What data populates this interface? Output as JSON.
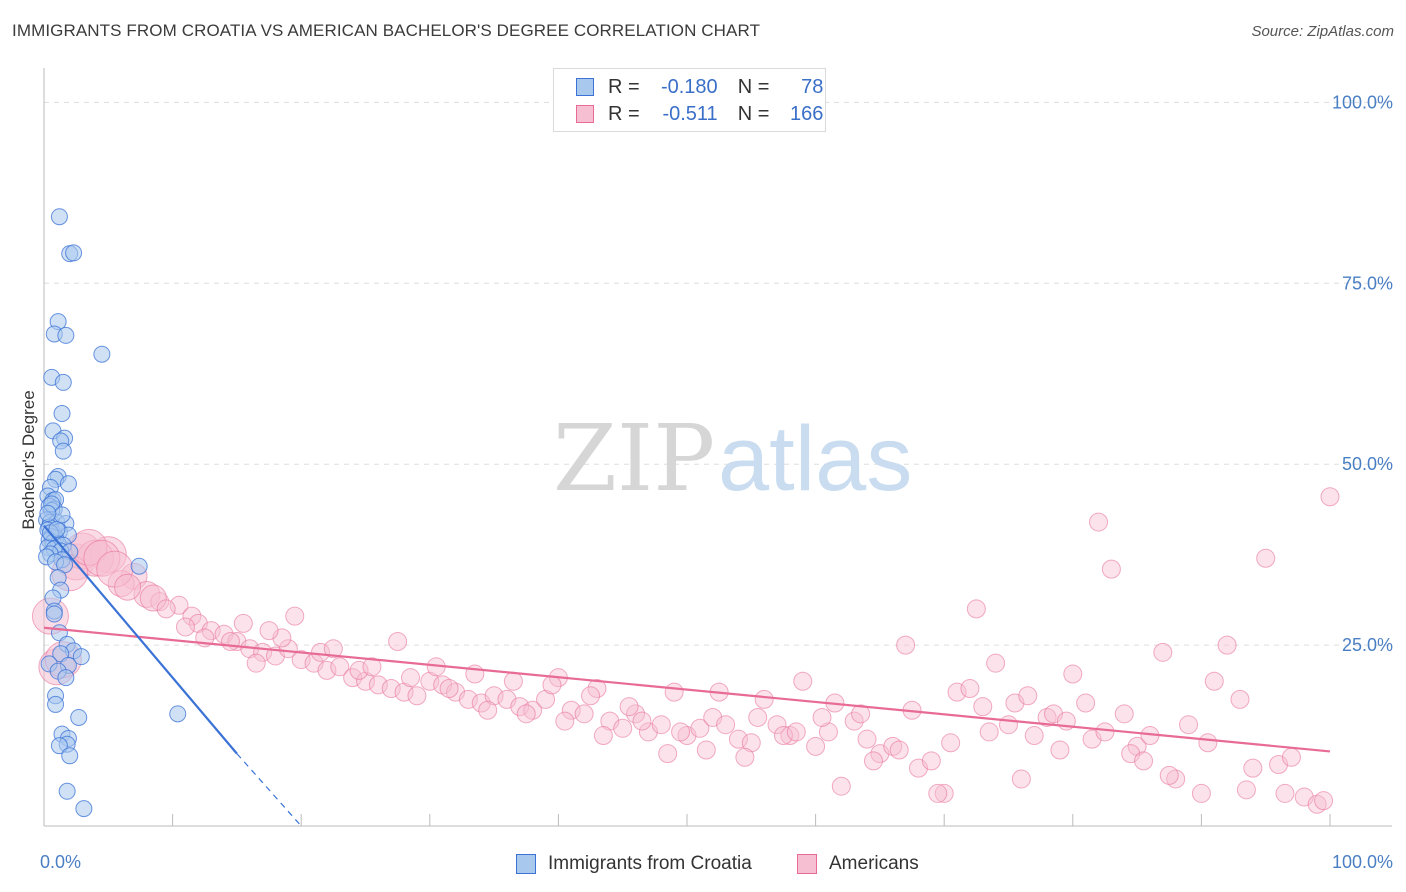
{
  "title": "IMMIGRANTS FROM CROATIA VS AMERICAN BACHELOR'S DEGREE CORRELATION CHART",
  "source": "Source: ZipAtlas.com",
  "watermark": {
    "zip": "ZIP",
    "atlas": "atlas"
  },
  "colors": {
    "blue": "#3a72d6",
    "blue_fill": "#a9c8ee",
    "pink": "#e86b96",
    "pink_fill": "#f6bfd2",
    "tick_text": "#4a7fc4",
    "grid": "#dddddd"
  },
  "legend": {
    "rows": [
      {
        "r_label": "R =",
        "r_value": "-0.180",
        "n_label": "N =",
        "n_value": "78"
      },
      {
        "r_label": "R =",
        "r_value": "-0.511",
        "n_label": "N =",
        "n_value": "166"
      }
    ]
  },
  "bottom_legend": [
    "Immigrants from Croatia",
    "Americans"
  ],
  "chart_data": {
    "type": "scatter",
    "title": "IMMIGRANTS FROM CROATIA VS AMERICAN BACHELOR'S DEGREE CORRELATION CHART",
    "xlabel": "",
    "ylabel": "Bachelor's Degree",
    "xlim": [
      0,
      100
    ],
    "ylim": [
      0,
      100
    ],
    "x_tick_labels": [
      "0.0%",
      "100.0%"
    ],
    "y_ticks": [
      {
        "value": 100,
        "label": "100.0%"
      },
      {
        "value": 75,
        "label": "75.0%"
      },
      {
        "value": 50,
        "label": "50.0%"
      },
      {
        "value": 25,
        "label": "25.0%"
      }
    ],
    "series": [
      {
        "name": "Immigrants from Croatia",
        "color": "#3a72d6",
        "r": -0.18,
        "n": 78,
        "trend": {
          "x0": 0,
          "y0": 41.5,
          "x1": 15.0,
          "y1": 10.0,
          "dash_to_x": 20.0
        },
        "points": [
          [
            1.2,
            84.2
          ],
          [
            2.0,
            79.1
          ],
          [
            2.3,
            79.2
          ],
          [
            1.1,
            69.7
          ],
          [
            0.8,
            68.0
          ],
          [
            1.7,
            67.8
          ],
          [
            4.5,
            65.2
          ],
          [
            0.6,
            62.0
          ],
          [
            1.5,
            61.3
          ],
          [
            1.4,
            57.0
          ],
          [
            0.7,
            54.6
          ],
          [
            1.6,
            53.6
          ],
          [
            1.3,
            53.2
          ],
          [
            1.5,
            51.8
          ],
          [
            1.1,
            48.3
          ],
          [
            0.9,
            47.9
          ],
          [
            1.9,
            47.3
          ],
          [
            0.5,
            46.8
          ],
          [
            0.3,
            45.6
          ],
          [
            0.7,
            45.0
          ],
          [
            0.9,
            45.1
          ],
          [
            0.4,
            44.2
          ],
          [
            0.8,
            43.8
          ],
          [
            0.6,
            43.6
          ],
          [
            0.2,
            42.3
          ],
          [
            0.5,
            42.0
          ],
          [
            1.0,
            42.0
          ],
          [
            1.7,
            41.8
          ],
          [
            0.4,
            41.3
          ],
          [
            0.3,
            40.9
          ],
          [
            1.2,
            40.7
          ],
          [
            1.9,
            40.2
          ],
          [
            0.6,
            40.0
          ],
          [
            0.9,
            39.8
          ],
          [
            0.4,
            39.5
          ],
          [
            0.7,
            39.2
          ],
          [
            1.1,
            39.0
          ],
          [
            1.5,
            38.8
          ],
          [
            0.3,
            38.5
          ],
          [
            0.8,
            38.3
          ],
          [
            1.3,
            38.0
          ],
          [
            2.0,
            37.9
          ],
          [
            0.5,
            37.6
          ],
          [
            0.2,
            37.2
          ],
          [
            1.4,
            36.8
          ],
          [
            0.9,
            36.5
          ],
          [
            1.6,
            36.1
          ],
          [
            7.4,
            35.9
          ],
          [
            1.1,
            34.3
          ],
          [
            1.3,
            32.6
          ],
          [
            0.7,
            31.5
          ],
          [
            0.8,
            29.7
          ],
          [
            0.8,
            29.3
          ],
          [
            1.2,
            26.7
          ],
          [
            1.8,
            25.1
          ],
          [
            2.3,
            24.2
          ],
          [
            1.3,
            23.8
          ],
          [
            2.9,
            23.4
          ],
          [
            0.4,
            22.4
          ],
          [
            1.9,
            22.2
          ],
          [
            1.1,
            21.4
          ],
          [
            1.7,
            20.5
          ],
          [
            0.9,
            18.0
          ],
          [
            0.9,
            16.8
          ],
          [
            2.7,
            15.0
          ],
          [
            10.4,
            15.5
          ],
          [
            1.4,
            12.7
          ],
          [
            1.9,
            12.1
          ],
          [
            1.8,
            11.3
          ],
          [
            1.2,
            11.1
          ],
          [
            2.0,
            9.7
          ],
          [
            1.8,
            4.8
          ],
          [
            3.1,
            2.4
          ],
          [
            0.5,
            40.5
          ],
          [
            1.0,
            41.0
          ],
          [
            0.6,
            44.5
          ],
          [
            1.4,
            43.0
          ],
          [
            0.3,
            43.2
          ]
        ]
      },
      {
        "name": "Americans",
        "color": "#e86b96",
        "r": -0.511,
        "n": 166,
        "trend": {
          "x0": 0,
          "y0": 27.4,
          "x1": 100,
          "y1": 10.3
        },
        "points": [
          [
            2.5,
            36.5
          ],
          [
            3.0,
            38.0
          ],
          [
            5.0,
            37.5
          ],
          [
            4.0,
            37.0
          ],
          [
            7.0,
            34.5
          ],
          [
            6.0,
            33.5
          ],
          [
            8.0,
            32.0
          ],
          [
            9.0,
            31.0
          ],
          [
            10.5,
            30.5
          ],
          [
            11.5,
            29.0
          ],
          [
            12.0,
            28.0
          ],
          [
            13.0,
            27.0
          ],
          [
            14.0,
            26.5
          ],
          [
            15.0,
            25.5
          ],
          [
            16.0,
            24.5
          ],
          [
            17.0,
            24.0
          ],
          [
            18.0,
            23.5
          ],
          [
            19.0,
            24.5
          ],
          [
            20.0,
            23.0
          ],
          [
            21.0,
            22.5
          ],
          [
            22.0,
            21.5
          ],
          [
            23.0,
            22.0
          ],
          [
            24.0,
            20.5
          ],
          [
            25.0,
            20.0
          ],
          [
            26.0,
            19.5
          ],
          [
            27.0,
            19.0
          ],
          [
            28.0,
            18.5
          ],
          [
            29.0,
            18.0
          ],
          [
            30.0,
            20.0
          ],
          [
            31.0,
            19.5
          ],
          [
            32.0,
            18.5
          ],
          [
            33.0,
            17.5
          ],
          [
            34.0,
            17.0
          ],
          [
            35.0,
            18.0
          ],
          [
            36.0,
            17.5
          ],
          [
            37.0,
            16.5
          ],
          [
            38.0,
            16.0
          ],
          [
            39.0,
            17.5
          ],
          [
            40.0,
            20.5
          ],
          [
            41.0,
            16.0
          ],
          [
            42.0,
            15.5
          ],
          [
            43.0,
            19.0
          ],
          [
            44.0,
            14.5
          ],
          [
            45.0,
            13.5
          ],
          [
            46.0,
            15.5
          ],
          [
            47.0,
            13.0
          ],
          [
            48.0,
            14.0
          ],
          [
            49.0,
            18.5
          ],
          [
            50.0,
            12.5
          ],
          [
            51.0,
            13.5
          ],
          [
            52.0,
            15.0
          ],
          [
            53.0,
            14.0
          ],
          [
            54.0,
            12.0
          ],
          [
            55.0,
            11.5
          ],
          [
            56.0,
            17.5
          ],
          [
            57.0,
            14.0
          ],
          [
            58.0,
            12.5
          ],
          [
            59.0,
            20.0
          ],
          [
            60.0,
            11.0
          ],
          [
            61.0,
            13.0
          ],
          [
            62.0,
            5.5
          ],
          [
            63.0,
            14.5
          ],
          [
            64.0,
            12.0
          ],
          [
            65.0,
            10.0
          ],
          [
            66.0,
            11.0
          ],
          [
            67.0,
            25.0
          ],
          [
            68.0,
            8.0
          ],
          [
            69.0,
            9.0
          ],
          [
            70.0,
            4.5
          ],
          [
            71.0,
            18.5
          ],
          [
            72.0,
            19.0
          ],
          [
            73.0,
            16.5
          ],
          [
            74.0,
            22.5
          ],
          [
            75.0,
            14.0
          ],
          [
            76.0,
            6.5
          ],
          [
            77.0,
            12.5
          ],
          [
            78.0,
            15.0
          ],
          [
            79.0,
            10.5
          ],
          [
            80.0,
            21.0
          ],
          [
            81.0,
            17.0
          ],
          [
            82.0,
            42.0
          ],
          [
            83.0,
            35.5
          ],
          [
            84.0,
            15.5
          ],
          [
            85.0,
            11.0
          ],
          [
            86.0,
            12.5
          ],
          [
            87.0,
            24.0
          ],
          [
            88.0,
            6.5
          ],
          [
            89.0,
            14.0
          ],
          [
            90.0,
            4.5
          ],
          [
            91.0,
            20.0
          ],
          [
            92.0,
            25.0
          ],
          [
            93.0,
            17.5
          ],
          [
            94.0,
            8.0
          ],
          [
            95.0,
            37.0
          ],
          [
            96.0,
            8.5
          ],
          [
            97.0,
            9.5
          ],
          [
            98.0,
            4.0
          ],
          [
            99.0,
            3.0
          ],
          [
            100.0,
            45.5
          ],
          [
            15.5,
            28.0
          ],
          [
            18.5,
            26.0
          ],
          [
            21.5,
            24.0
          ],
          [
            24.5,
            21.5
          ],
          [
            27.5,
            25.5
          ],
          [
            30.5,
            22.0
          ],
          [
            33.5,
            21.0
          ],
          [
            36.5,
            20.0
          ],
          [
            39.5,
            19.5
          ],
          [
            42.5,
            18.0
          ],
          [
            45.5,
            16.5
          ],
          [
            48.5,
            10.0
          ],
          [
            51.5,
            10.5
          ],
          [
            54.5,
            9.5
          ],
          [
            57.5,
            12.5
          ],
          [
            60.5,
            15.0
          ],
          [
            63.5,
            15.5
          ],
          [
            66.5,
            10.5
          ],
          [
            69.5,
            4.5
          ],
          [
            72.5,
            30.0
          ],
          [
            75.5,
            17.0
          ],
          [
            78.5,
            15.5
          ],
          [
            81.5,
            12.0
          ],
          [
            84.5,
            10.0
          ],
          [
            87.5,
            7.0
          ],
          [
            90.5,
            11.5
          ],
          [
            93.5,
            5.0
          ],
          [
            96.5,
            4.5
          ],
          [
            99.5,
            3.5
          ],
          [
            0.5,
            29.0
          ],
          [
            1.0,
            22.0
          ],
          [
            1.5,
            23.0
          ],
          [
            2.0,
            35.0
          ],
          [
            3.5,
            38.5
          ],
          [
            4.5,
            37.0
          ],
          [
            5.5,
            35.5
          ],
          [
            6.5,
            33.0
          ],
          [
            8.5,
            31.5
          ],
          [
            9.5,
            30.0
          ],
          [
            11.0,
            27.5
          ],
          [
            12.5,
            26.0
          ],
          [
            14.5,
            25.5
          ],
          [
            16.5,
            22.5
          ],
          [
            17.5,
            27.0
          ],
          [
            19.5,
            29.0
          ],
          [
            22.5,
            24.5
          ],
          [
            25.5,
            22.0
          ],
          [
            28.5,
            20.5
          ],
          [
            31.5,
            19.0
          ],
          [
            34.5,
            16.0
          ],
          [
            37.5,
            15.5
          ],
          [
            40.5,
            14.5
          ],
          [
            43.5,
            12.5
          ],
          [
            46.5,
            14.5
          ],
          [
            49.5,
            13.0
          ],
          [
            52.5,
            18.5
          ],
          [
            55.5,
            15.0
          ],
          [
            58.5,
            13.0
          ],
          [
            61.5,
            17.0
          ],
          [
            64.5,
            9.0
          ],
          [
            67.5,
            16.0
          ],
          [
            70.5,
            11.5
          ],
          [
            73.5,
            13.0
          ],
          [
            76.5,
            18.0
          ],
          [
            79.5,
            14.5
          ],
          [
            82.5,
            13.0
          ],
          [
            85.5,
            9.0
          ]
        ]
      }
    ]
  }
}
